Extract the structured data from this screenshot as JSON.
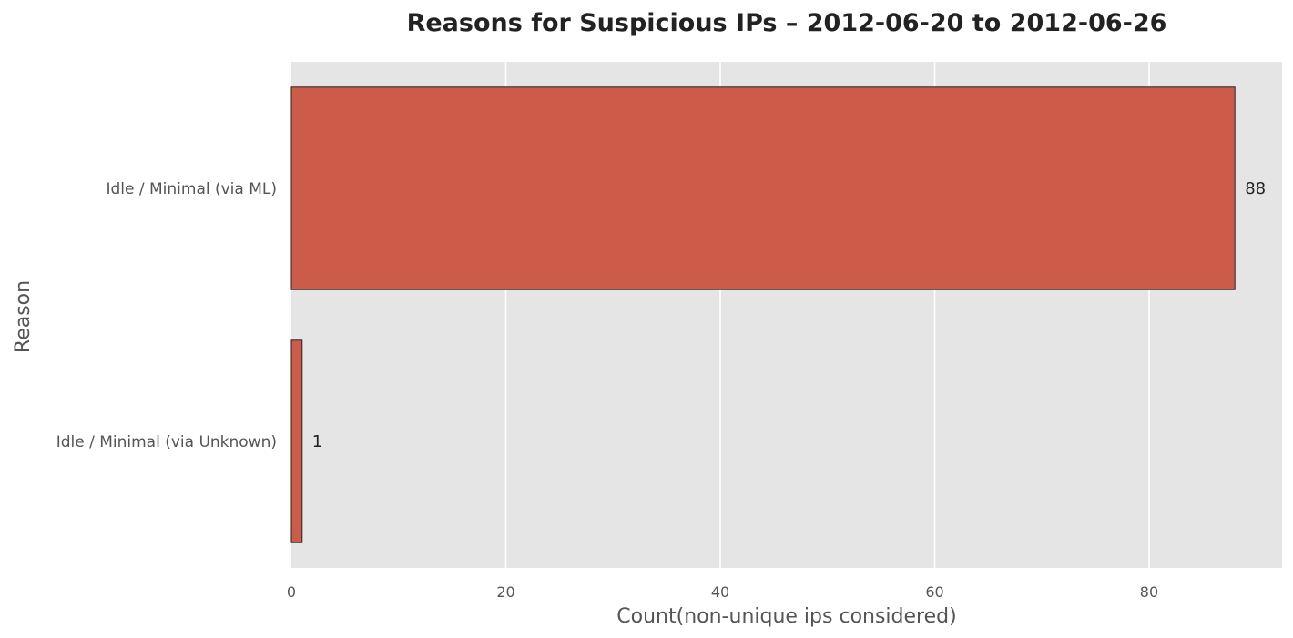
{
  "chart_data": {
    "type": "bar",
    "orientation": "horizontal",
    "title": "Reasons for Suspicious IPs – 2012-06-20 to 2012-06-26",
    "xlabel": "Count(non-unique ips considered)",
    "ylabel": "Reason",
    "categories": [
      "Idle / Minimal (via ML)",
      "Idle / Minimal (via Unknown)"
    ],
    "values": [
      88,
      1
    ],
    "data_labels": [
      "88",
      "1"
    ],
    "xlim": [
      0,
      92.4
    ],
    "xticks": [
      0,
      20,
      40,
      60,
      80
    ],
    "xtick_labels": [
      "0",
      "20",
      "40",
      "60",
      "80"
    ],
    "grid": true,
    "colors": {
      "bar": "#cd5b4a",
      "bar_edge": "#222222",
      "plot_background": "#e5e5e5",
      "grid": "#ffffff"
    }
  }
}
